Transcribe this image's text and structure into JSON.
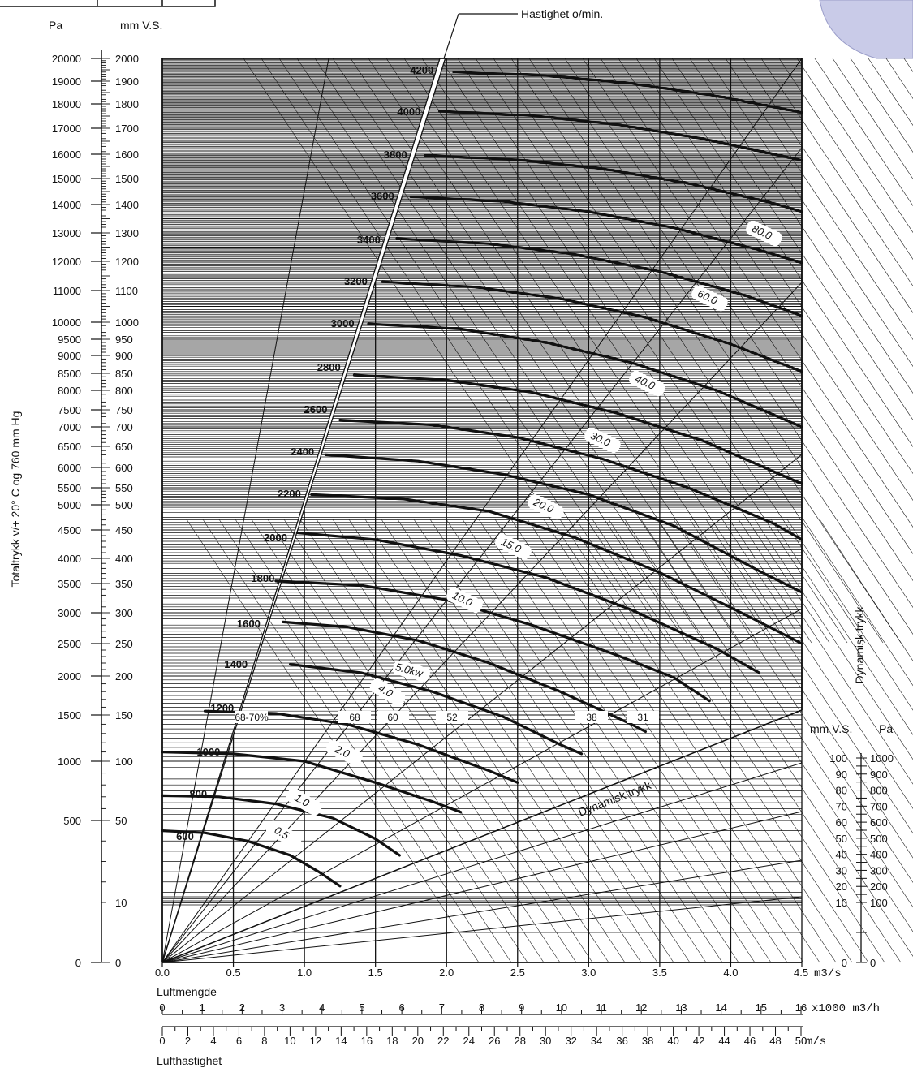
{
  "chart_data": {
    "type": "line",
    "x_axis": {
      "label": "Luftmengde",
      "unit": "m3/s",
      "range": [
        0,
        4.5
      ],
      "ticks": [
        "0.0",
        "0.5",
        "1.0",
        "1.5",
        "2.0",
        "2.5",
        "3.0",
        "3.5",
        "4.0",
        "4.5"
      ]
    },
    "flow_axis": {
      "unit": "x1000 m3/h",
      "ticks": [
        "0",
        "1",
        "2",
        "3",
        "4",
        "5",
        "6",
        "7",
        "8",
        "9",
        "10",
        "11",
        "12",
        "13",
        "14",
        "15",
        "16"
      ]
    },
    "velocity_axis": {
      "label": "Lufthastighet",
      "unit": "m/s",
      "ticks": [
        "0",
        "2",
        "4",
        "6",
        "8",
        "10",
        "12",
        "14",
        "16",
        "18",
        "20",
        "22",
        "24",
        "26",
        "28",
        "30",
        "32",
        "34",
        "36",
        "38",
        "40",
        "42",
        "44",
        "46",
        "48",
        "50"
      ]
    },
    "y_axis": {
      "label": "Totaltrykk v/+ 20° C og 760 mm Hg",
      "unit_pa": "Pa",
      "unit_mmvs": "mm V.S.",
      "pa_ticks": [
        "20000",
        "19000",
        "18000",
        "17000",
        "16000",
        "15000",
        "14000",
        "13000",
        "12000",
        "11000",
        "10000",
        "9500",
        "9000",
        "8500",
        "8000",
        "7500",
        "7000",
        "6500",
        "6000",
        "5500",
        "5000",
        "4500",
        "4000",
        "3500",
        "3000",
        "2500",
        "2000",
        "1500",
        "1000",
        "500",
        "0"
      ],
      "mm_ticks": [
        "2000",
        "1900",
        "1800",
        "1700",
        "1600",
        "1500",
        "1400",
        "1300",
        "1200",
        "1100",
        "1000",
        "950",
        "900",
        "850",
        "800",
        "750",
        "700",
        "650",
        "600",
        "550",
        "500",
        "450",
        "400",
        "350",
        "300",
        "250",
        "200",
        "150",
        "100",
        "50",
        "10",
        "0"
      ]
    },
    "speed_label": "Hastighet o/min.",
    "speed_curves": [
      {
        "rpm": "600",
        "values": [
          [
            0.0,
            45
          ],
          [
            0.3,
            44
          ],
          [
            0.6,
            40
          ],
          [
            0.9,
            33
          ],
          [
            1.1,
            25
          ],
          [
            1.25,
            18
          ]
        ]
      },
      {
        "rpm": "800",
        "values": [
          [
            0.0,
            71
          ],
          [
            0.4,
            70
          ],
          [
            0.8,
            64
          ],
          [
            1.2,
            52
          ],
          [
            1.5,
            41
          ],
          [
            1.67,
            33
          ]
        ]
      },
      {
        "rpm": "1000",
        "values": [
          [
            0.0,
            110
          ],
          [
            0.5,
            108
          ],
          [
            1.0,
            100
          ],
          [
            1.5,
            82
          ],
          [
            1.9,
            66
          ],
          [
            2.1,
            57
          ]
        ]
      },
      {
        "rpm": "1200",
        "values": [
          [
            0.3,
            155
          ],
          [
            0.8,
            152
          ],
          [
            1.3,
            140
          ],
          [
            1.8,
            118
          ],
          [
            2.3,
            92
          ],
          [
            2.5,
            82
          ]
        ]
      },
      {
        "rpm": "1400",
        "values": [
          [
            0.9,
            218
          ],
          [
            1.4,
            205
          ],
          [
            1.9,
            180
          ],
          [
            2.4,
            148
          ],
          [
            2.8,
            118
          ],
          [
            2.95,
            108
          ]
        ]
      },
      {
        "rpm": "1600",
        "values": [
          [
            0.85,
            285
          ],
          [
            1.3,
            277
          ],
          [
            1.8,
            255
          ],
          [
            2.3,
            220
          ],
          [
            2.8,
            180
          ],
          [
            3.3,
            140
          ],
          [
            3.4,
            132
          ]
        ]
      },
      {
        "rpm": "1800",
        "values": [
          [
            0.8,
            355
          ],
          [
            1.4,
            347
          ],
          [
            2.0,
            322
          ],
          [
            2.6,
            280
          ],
          [
            3.2,
            232
          ],
          [
            3.6,
            198
          ],
          [
            3.85,
            168
          ]
        ]
      },
      {
        "rpm": "2000",
        "values": [
          [
            0.95,
            445
          ],
          [
            1.5,
            433
          ],
          [
            2.1,
            405
          ],
          [
            2.7,
            362
          ],
          [
            3.3,
            305
          ],
          [
            3.9,
            242
          ],
          [
            4.2,
            205
          ]
        ]
      },
      {
        "rpm": "2200",
        "values": [
          [
            1.05,
            530
          ],
          [
            1.7,
            517
          ],
          [
            2.3,
            487
          ],
          [
            2.9,
            437
          ],
          [
            3.5,
            372
          ],
          [
            4.1,
            297
          ],
          [
            4.5,
            250
          ]
        ]
      },
      {
        "rpm": "2400",
        "values": [
          [
            1.15,
            630
          ],
          [
            1.8,
            615
          ],
          [
            2.4,
            583
          ],
          [
            3.0,
            530
          ],
          [
            3.6,
            458
          ],
          [
            4.2,
            375
          ],
          [
            4.5,
            335
          ]
        ]
      },
      {
        "rpm": "2600",
        "values": [
          [
            1.25,
            720
          ],
          [
            1.9,
            706
          ],
          [
            2.5,
            673
          ],
          [
            3.1,
            620
          ],
          [
            3.7,
            550
          ],
          [
            4.3,
            463
          ],
          [
            4.5,
            433
          ]
        ]
      },
      {
        "rpm": "2800",
        "values": [
          [
            1.35,
            845
          ],
          [
            2.0,
            830
          ],
          [
            2.6,
            795
          ],
          [
            3.2,
            740
          ],
          [
            3.8,
            665
          ],
          [
            4.4,
            575
          ],
          [
            4.5,
            560
          ]
        ]
      },
      {
        "rpm": "3000",
        "values": [
          [
            1.45,
            995
          ],
          [
            2.1,
            980
          ],
          [
            2.7,
            940
          ],
          [
            3.3,
            880
          ],
          [
            3.9,
            800
          ],
          [
            4.5,
            700
          ]
        ]
      },
      {
        "rpm": "3200",
        "values": [
          [
            1.55,
            1130
          ],
          [
            2.2,
            1112
          ],
          [
            2.8,
            1075
          ],
          [
            3.4,
            1015
          ],
          [
            4.0,
            935
          ],
          [
            4.5,
            855
          ]
        ]
      },
      {
        "rpm": "3400",
        "values": [
          [
            1.65,
            1280
          ],
          [
            2.3,
            1262
          ],
          [
            2.9,
            1225
          ],
          [
            3.5,
            1165
          ],
          [
            4.1,
            1085
          ],
          [
            4.5,
            1020
          ]
        ]
      },
      {
        "rpm": "3600",
        "values": [
          [
            1.75,
            1430
          ],
          [
            2.4,
            1412
          ],
          [
            3.0,
            1375
          ],
          [
            3.6,
            1318
          ],
          [
            4.2,
            1240
          ],
          [
            4.5,
            1195
          ]
        ]
      },
      {
        "rpm": "3800",
        "values": [
          [
            1.85,
            1595
          ],
          [
            2.5,
            1577
          ],
          [
            3.1,
            1540
          ],
          [
            3.7,
            1482
          ],
          [
            4.3,
            1405
          ],
          [
            4.5,
            1375
          ]
        ]
      },
      {
        "rpm": "4000",
        "values": [
          [
            1.95,
            1770
          ],
          [
            2.6,
            1752
          ],
          [
            3.2,
            1715
          ],
          [
            3.8,
            1660
          ],
          [
            4.5,
            1575
          ]
        ]
      },
      {
        "rpm": "4200",
        "values": [
          [
            2.05,
            1940
          ],
          [
            2.7,
            1925
          ],
          [
            3.3,
            1890
          ],
          [
            3.9,
            1835
          ],
          [
            4.5,
            1765
          ]
        ]
      }
    ],
    "power_labels": [
      "0.5",
      "1.0",
      "2.0",
      "4.0",
      "5.0kw",
      "10.0",
      "15.0",
      "20.0",
      "30.0",
      "40.0",
      "60.0",
      "80.0"
    ],
    "efficiency_labels": [
      "68-70%",
      "68",
      "60",
      "52",
      "38",
      "31"
    ],
    "dynamic_pressure_label": "Dynamisk trykk",
    "dynamic_pressure_axis": {
      "unit_mmvs": "mm V.S.",
      "unit_pa": "Pa",
      "mm_ticks": [
        "100",
        "90",
        "80",
        "70",
        "60",
        "50",
        "40",
        "30",
        "20",
        "10",
        "0"
      ],
      "pa_ticks": [
        "1000",
        "900",
        "800",
        "700",
        "600",
        "500",
        "400",
        "300",
        "200",
        "100",
        "0"
      ]
    },
    "grid": true
  }
}
